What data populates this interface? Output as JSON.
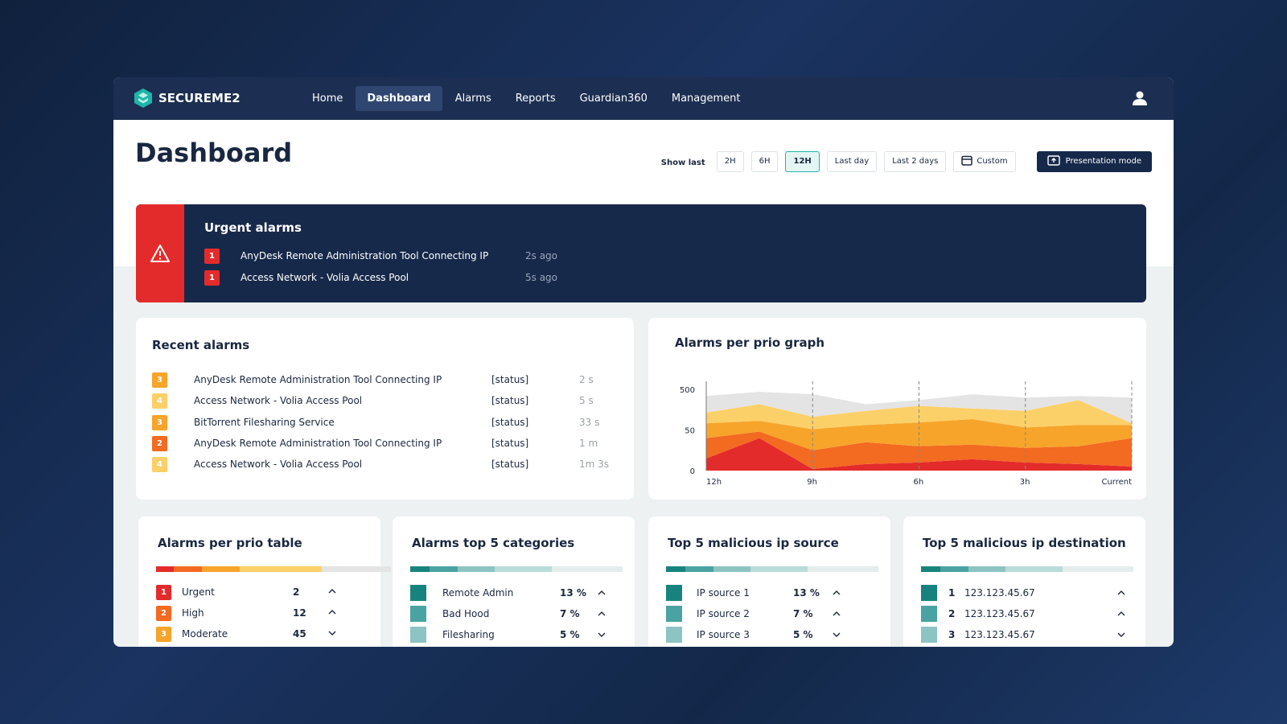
{
  "nav": {
    "brand": "SECUREME2",
    "items": [
      "Home",
      "Dashboard",
      "Alarms",
      "Reports",
      "Guardian360",
      "Management"
    ],
    "active": 1
  },
  "header": {
    "title": "Dashboard",
    "show_last": "Show last",
    "ranges": [
      "2H",
      "6H",
      "12H",
      "Last day",
      "Last 2 days",
      "Custom"
    ],
    "active_range": 2,
    "presentation": "Presentation mode"
  },
  "urgent": {
    "title": "Urgent alarms",
    "alarms": [
      {
        "prio": 1,
        "name": "AnyDesk Remote Administration Tool Connecting IP",
        "time": "2s ago"
      },
      {
        "prio": 1,
        "name": "Access Network - Volia Access Pool",
        "time": "5s ago"
      }
    ]
  },
  "recent": {
    "title": "Recent alarms",
    "alarms": [
      {
        "prio": 3,
        "name": "AnyDesk Remote Administration Tool Connecting IP",
        "status": "[status]",
        "time": "2 s"
      },
      {
        "prio": 4,
        "name": "Access Network - Volia Access Pool",
        "status": "[status]",
        "time": "5 s"
      },
      {
        "prio": 3,
        "name": "BitTorrent Filesharing Service",
        "status": "[status]",
        "time": "33 s"
      },
      {
        "prio": 2,
        "name": "AnyDesk Remote Administration Tool Connecting IP",
        "status": "[status]",
        "time": "1 m"
      },
      {
        "prio": 4,
        "name": "Access Network - Volia Access Pool",
        "status": "[status]",
        "time": "1m 3s"
      }
    ]
  },
  "chart_data": {
    "type": "area",
    "title": "Alarms per prio graph",
    "stacked": true,
    "x": [
      12,
      10.5,
      9,
      7.5,
      6,
      4.5,
      3,
      1.5,
      0
    ],
    "xlim": [
      12,
      0
    ],
    "xticks": [
      {
        "value": 12,
        "label": "12h"
      },
      {
        "value": 9,
        "label": "9h"
      },
      {
        "value": 6,
        "label": "6h"
      },
      {
        "value": 3,
        "label": "3h"
      },
      {
        "value": 0,
        "label": "Current"
      }
    ],
    "ylim": [
      0,
      500
    ],
    "yticks": [
      0,
      50,
      500
    ],
    "series": [
      {
        "color": "#e42b2b",
        "values": [
          15,
          40,
          2,
          8,
          10,
          14,
          10,
          8,
          5
        ]
      },
      {
        "color": "#f36a21",
        "values": [
          25,
          8,
          23,
          27,
          20,
          18,
          18,
          22,
          35
        ]
      },
      {
        "color": "#f7a42b",
        "values": [
          84,
          104,
          34,
          71,
          103,
          138,
          50,
          76,
          66
        ]
      },
      {
        "color": "#fcd068",
        "values": [
          119,
          183,
          138,
          156,
          184,
          119,
          184,
          275,
          18
        ]
      },
      {
        "color": "#e4e4e4",
        "values": [
          184,
          138,
          249,
          73,
          64,
          157,
          147,
          46,
          285
        ]
      }
    ]
  },
  "prio_table": {
    "title": "Alarms per prio table",
    "rows": [
      {
        "prio": 1,
        "label": "Urgent",
        "count": 2,
        "trend": "up"
      },
      {
        "prio": 2,
        "label": "High",
        "count": 12,
        "trend": "up"
      },
      {
        "prio": 3,
        "label": "Moderate",
        "count": 45,
        "trend": "down"
      }
    ]
  },
  "top_categories": {
    "title": "Alarms top 5 categories",
    "rows": [
      {
        "label": "Remote Admin",
        "share": "13 %",
        "trend": "up"
      },
      {
        "label": "Bad Hood",
        "share": "7 %",
        "trend": "up"
      },
      {
        "label": "Filesharing",
        "share": "5 %",
        "trend": "down"
      }
    ]
  },
  "ip_source": {
    "title": "Top 5 malicious ip source",
    "rows": [
      {
        "label": "IP source 1",
        "share": "13 %",
        "trend": "up"
      },
      {
        "label": "IP source 2",
        "share": "7 %",
        "trend": "up"
      },
      {
        "label": "IP source 3",
        "share": "5 %",
        "trend": "down"
      }
    ]
  },
  "ip_destination": {
    "title": "Top 5 malicious ip destination",
    "rows": [
      {
        "rank": 1,
        "ip": "123.123.45.67",
        "trend": "up"
      },
      {
        "rank": 2,
        "ip": "123.123.45.67",
        "trend": "up"
      },
      {
        "rank": 3,
        "ip": "123.123.45.67",
        "trend": "down"
      }
    ]
  }
}
